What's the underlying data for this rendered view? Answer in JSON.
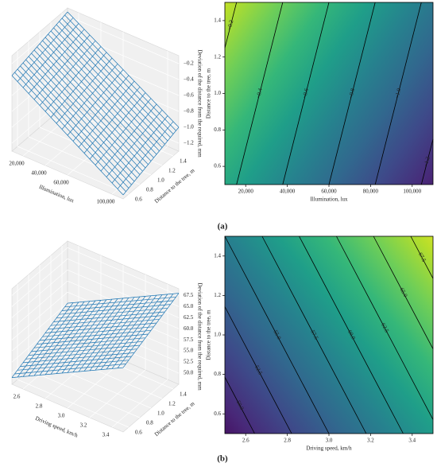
{
  "panel_labels": [
    "(a)",
    "(b)"
  ],
  "chart_data": [
    {
      "type": "surface",
      "xlabel": "Illumination, lux",
      "ylabel": "Distance to the tree, m",
      "zlabel": "Deviation of the distance from the required, mm",
      "xlim": [
        10000,
        110000
      ],
      "ylim": [
        0.5,
        1.5
      ],
      "zlim": [
        -1.3,
        -0.1
      ],
      "xticks": [
        {
          "value": 20000,
          "label": "20,000"
        },
        {
          "value": 40000,
          "label": "40,000"
        },
        {
          "value": 60000,
          "label": "60,000"
        },
        {
          "value": 100000,
          "label": "100,000"
        }
      ],
      "yticks": [
        0.6,
        0.8,
        {
          "value": 1,
          "label": "1.0"
        },
        1.2,
        1.4
      ],
      "zticks": [
        {
          "value": -0.2,
          "label": "−0.2"
        },
        {
          "value": -0.4,
          "label": "−0.4"
        },
        {
          "value": -0.6,
          "label": "−0.6"
        },
        {
          "value": -0.8,
          "label": "−0.8"
        },
        {
          "value": -1,
          "label": "−1.0"
        },
        {
          "value": -1.2,
          "label": "−1.2"
        }
      ],
      "z": [
        [
          -0.35,
          -0.15
        ],
        [
          -1.25,
          -1.0
        ]
      ],
      "color": "#1f77b4"
    },
    {
      "type": "contour",
      "xlabel": "Illumination, lux",
      "ylabel": "Distance to the tree, m",
      "xlim": [
        10000,
        110000
      ],
      "ylim": [
        0.5,
        1.5
      ],
      "xticks": [
        {
          "value": 20000,
          "label": "20,000"
        },
        {
          "value": 40000,
          "label": "40,000"
        },
        {
          "value": 60000,
          "label": "60,000"
        },
        {
          "value": 80000,
          "label": "80,000"
        },
        {
          "value": 100000,
          "label": "100,000"
        }
      ],
      "yticks": [
        0.6,
        0.8,
        {
          "value": 1,
          "label": "1.0"
        },
        1.2,
        1.4
      ],
      "levels": [
        {
          "value": -0.2,
          "label": "−0.2"
        },
        {
          "value": -0.4,
          "label": "−0.4"
        },
        {
          "value": -0.6,
          "label": "−0.6"
        },
        {
          "value": -0.8,
          "label": "−0.8"
        },
        {
          "value": -1,
          "label": "−1.0"
        },
        {
          "value": -1.2,
          "label": "−1.2"
        }
      ],
      "lines": [
        {
          "x": [
            10000,
            15600
          ],
          "y": [
            1.25,
            1.5
          ]
        },
        {
          "x": [
            15600,
            37800
          ],
          "y": [
            0.5,
            1.5
          ]
        },
        {
          "x": [
            37800,
            60000
          ],
          "y": [
            0.5,
            1.5
          ]
        },
        {
          "x": [
            60000,
            82200
          ],
          "y": [
            0.5,
            1.5
          ]
        },
        {
          "x": [
            82200,
            104400
          ],
          "y": [
            0.5,
            1.5
          ]
        },
        {
          "x": [
            104400,
            110000
          ],
          "y": [
            0.5,
            0.75
          ]
        }
      ],
      "colormap": [
        "#440154",
        "#482878",
        "#3e4989",
        "#31688e",
        "#26828e",
        "#1f9e89",
        "#35b779",
        "#6ece58",
        "#b5de2b",
        "#fde725"
      ]
    },
    {
      "type": "surface",
      "xlabel": "Driving speed, km/h",
      "ylabel": "Distance to the tree, m",
      "zlabel": "Deviation of the distance from the required, mm",
      "xlim": [
        2.5,
        3.5
      ],
      "ylim": [
        0.5,
        1.5
      ],
      "zlim": [
        47.5,
        69
      ],
      "xticks": [
        2.6,
        2.8,
        {
          "value": 3,
          "label": "3.0"
        },
        3.2,
        3.4
      ],
      "yticks": [
        0.6,
        0.8,
        {
          "value": 1,
          "label": "1.0"
        },
        1.2,
        1.4
      ],
      "zticks": [
        {
          "value": 50,
          "label": "50.0"
        },
        52.5,
        {
          "value": 55,
          "label": "55.0"
        },
        57.5,
        {
          "value": 60,
          "label": "60.0"
        },
        62.5,
        {
          "value": 65,
          "label": "65.0"
        },
        67.5
      ],
      "z": [
        [
          49,
          55
        ],
        [
          62,
          68
        ]
      ],
      "color": "#1f77b4"
    },
    {
      "type": "contour",
      "xlabel": "Driving speed, km/h",
      "ylabel": "Distance to the tree, m",
      "xlim": [
        2.5,
        3.5
      ],
      "ylim": [
        0.5,
        1.5
      ],
      "xticks": [
        2.6,
        2.8,
        {
          "value": 3,
          "label": "3.0"
        },
        3.2,
        3.4
      ],
      "yticks": [
        0.6,
        0.8,
        {
          "value": 1,
          "label": "1.0"
        },
        1.2,
        1.4
      ],
      "levels": [
        {
          "value": 50,
          "label": "50.0"
        },
        52.5,
        {
          "value": 55,
          "label": "55.0"
        },
        57.5,
        {
          "value": 60,
          "label": "60.0"
        },
        62.5,
        {
          "value": 65,
          "label": "65.0"
        },
        67.5
      ],
      "lines": [
        {
          "x": [
            2.643,
            2.5
          ],
          "y": [
            0.5,
            0.786
          ]
        },
        {
          "x": [
            2.821,
            2.5
          ],
          "y": [
            0.5,
            1.143
          ]
        },
        {
          "x": [
            3.0,
            2.5
          ],
          "y": [
            0.5,
            1.5
          ]
        },
        {
          "x": [
            3.179,
            2.679
          ],
          "y": [
            0.5,
            1.5
          ]
        },
        {
          "x": [
            3.357,
            2.857
          ],
          "y": [
            0.5,
            1.5
          ]
        },
        {
          "x": [
            3.5,
            3.036
          ],
          "y": [
            0.571,
            1.5
          ]
        },
        {
          "x": [
            3.5,
            3.214
          ],
          "y": [
            0.929,
            1.5
          ]
        },
        {
          "x": [
            3.5,
            3.393
          ],
          "y": [
            1.286,
            1.5
          ]
        }
      ],
      "colormap": [
        "#440154",
        "#482878",
        "#3e4989",
        "#31688e",
        "#26828e",
        "#1f9e89",
        "#35b779",
        "#6ece58",
        "#b5de2b",
        "#fde725"
      ]
    }
  ]
}
